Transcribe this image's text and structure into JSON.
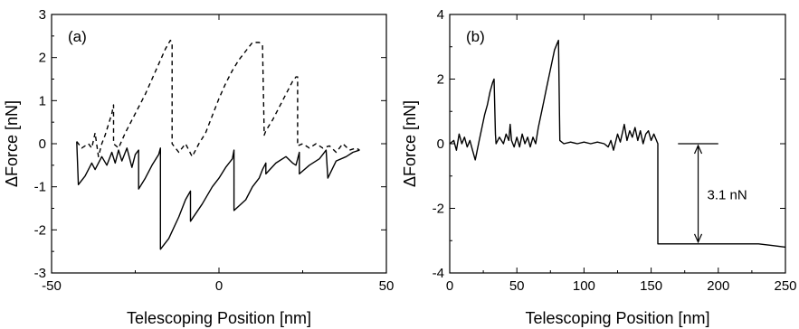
{
  "chart_data": [
    {
      "type": "line",
      "panel_label": "(a)",
      "xlabel": "Telescoping Position [nm]",
      "ylabel": "ΔForce [nN]",
      "xlim": [
        -50,
        50
      ],
      "ylim": [
        -3,
        3
      ],
      "xticks": [
        -50,
        0,
        50
      ],
      "yticks": [
        -3,
        -2,
        -1,
        0,
        1,
        2,
        3
      ],
      "grid": false,
      "series": [
        {
          "style": "solid",
          "x": [
            -42.5,
            -42,
            -40,
            -38,
            -37,
            -35,
            -33.5,
            -32,
            -31,
            -30,
            -29,
            -27.5,
            -26,
            -25,
            -24,
            -24,
            -22,
            -20,
            -18,
            -17.5,
            -17.5,
            -15,
            -12,
            -10,
            -8.5,
            -8.5,
            -5,
            -2,
            0,
            2,
            4,
            4.5,
            4.5,
            8,
            10,
            12,
            13,
            14,
            14,
            17,
            20,
            22,
            23,
            24,
            24,
            27,
            30,
            31,
            32,
            32.5,
            35,
            38,
            40,
            42
          ],
          "y": [
            0.05,
            -0.95,
            -0.75,
            -0.45,
            -0.6,
            -0.3,
            -0.5,
            -0.2,
            -0.45,
            -0.15,
            -0.4,
            -0.1,
            -0.55,
            -0.25,
            -0.15,
            -1.05,
            -0.8,
            -0.5,
            -0.25,
            -0.1,
            -2.45,
            -2.2,
            -1.7,
            -1.3,
            -1.1,
            -1.8,
            -1.4,
            -1.0,
            -0.8,
            -0.55,
            -0.35,
            -0.15,
            -1.55,
            -1.3,
            -1.0,
            -0.8,
            -0.6,
            -0.45,
            -0.7,
            -0.45,
            -0.3,
            -0.45,
            -0.5,
            -0.2,
            -0.7,
            -0.5,
            -0.35,
            -0.25,
            -0.15,
            -0.8,
            -0.4,
            -0.3,
            -0.2,
            -0.15
          ]
        },
        {
          "style": "dashed",
          "x": [
            -42.5,
            -41,
            -40,
            -39,
            -38,
            -37,
            -36,
            -35,
            -34,
            -33,
            -32,
            -31.5,
            -31.5,
            -30,
            -28,
            -26,
            -24,
            -22,
            -20,
            -18,
            -16,
            -14.5,
            -14,
            -14,
            -12,
            -10,
            -8,
            -6,
            -4,
            -2,
            0,
            2,
            4,
            6,
            8,
            10,
            12,
            13,
            13.5,
            14,
            16,
            18,
            20,
            22,
            23,
            23.5,
            23.5,
            25,
            27,
            29,
            31,
            33,
            35,
            37,
            39,
            41,
            42
          ],
          "y": [
            0.05,
            -0.1,
            -0.05,
            0.0,
            -0.1,
            0.25,
            -0.3,
            0.0,
            0.2,
            0.45,
            0.7,
            0.9,
            0.0,
            -0.1,
            0.25,
            0.55,
            0.85,
            1.15,
            1.5,
            1.85,
            2.2,
            2.4,
            2.35,
            0.0,
            -0.2,
            0.0,
            -0.3,
            0.0,
            0.25,
            0.65,
            1.05,
            1.4,
            1.7,
            1.95,
            2.15,
            2.35,
            2.35,
            2.3,
            0.2,
            0.3,
            0.55,
            0.85,
            1.15,
            1.45,
            1.55,
            1.55,
            -0.05,
            0.0,
            -0.1,
            0.0,
            -0.1,
            -0.05,
            -0.2,
            0.0,
            -0.15,
            -0.1,
            -0.15
          ]
        }
      ]
    },
    {
      "type": "line",
      "panel_label": "(b)",
      "xlabel": "Telescoping Position [nm]",
      "ylabel": "ΔForce [nN]",
      "xlim": [
        0,
        250
      ],
      "ylim": [
        -4,
        4
      ],
      "xticks": [
        0,
        50,
        100,
        150,
        200,
        250
      ],
      "yticks": [
        -4,
        -2,
        0,
        2,
        4
      ],
      "grid": false,
      "series": [
        {
          "style": "solid",
          "x": [
            0,
            3,
            5,
            7,
            9,
            11,
            13,
            15,
            17,
            19,
            20,
            22,
            24,
            26,
            28,
            30,
            32,
            33,
            34,
            34.5,
            37,
            40,
            42,
            44,
            45,
            46,
            48,
            50,
            52,
            54,
            56,
            58,
            60,
            62,
            64,
            66,
            68,
            70,
            72,
            74,
            76,
            78,
            80,
            81,
            82,
            85,
            90,
            95,
            100,
            105,
            110,
            115,
            118,
            120,
            122,
            125,
            127,
            129,
            130,
            132,
            134,
            136,
            138,
            140,
            142,
            144,
            146,
            148,
            150,
            152,
            154,
            155,
            155,
            160,
            170,
            180,
            190,
            200,
            210,
            220,
            230,
            240,
            250
          ],
          "y": [
            0.0,
            0.1,
            -0.2,
            0.3,
            0.0,
            0.2,
            -0.1,
            0.1,
            -0.2,
            -0.5,
            -0.3,
            0.1,
            0.5,
            0.9,
            1.2,
            1.6,
            1.9,
            2.0,
            0.3,
            0.0,
            0.2,
            0.0,
            0.3,
            0.1,
            0.6,
            0.1,
            -0.1,
            0.2,
            -0.1,
            0.3,
            0.0,
            0.2,
            -0.1,
            0.2,
            0.0,
            0.5,
            0.9,
            1.3,
            1.7,
            2.1,
            2.5,
            2.9,
            3.1,
            3.2,
            0.1,
            0.0,
            0.05,
            0.0,
            0.05,
            0.0,
            0.05,
            0.0,
            -0.1,
            0.1,
            -0.2,
            0.3,
            0.05,
            0.4,
            0.6,
            0.1,
            0.4,
            0.2,
            0.5,
            0.1,
            0.4,
            0.0,
            0.3,
            0.4,
            0.1,
            0.3,
            0.1,
            0.0,
            -3.1,
            -3.1,
            -3.1,
            -3.1,
            -3.1,
            -3.1,
            -3.1,
            -3.1,
            -3.1,
            -3.15,
            -3.2
          ]
        }
      ],
      "annotation": {
        "text": "3.1 nN",
        "ref_y": 0,
        "ref_x_range": [
          170,
          200
        ],
        "arrow_x": 185,
        "arrow_y_range": [
          -3.1,
          0
        ]
      }
    }
  ]
}
